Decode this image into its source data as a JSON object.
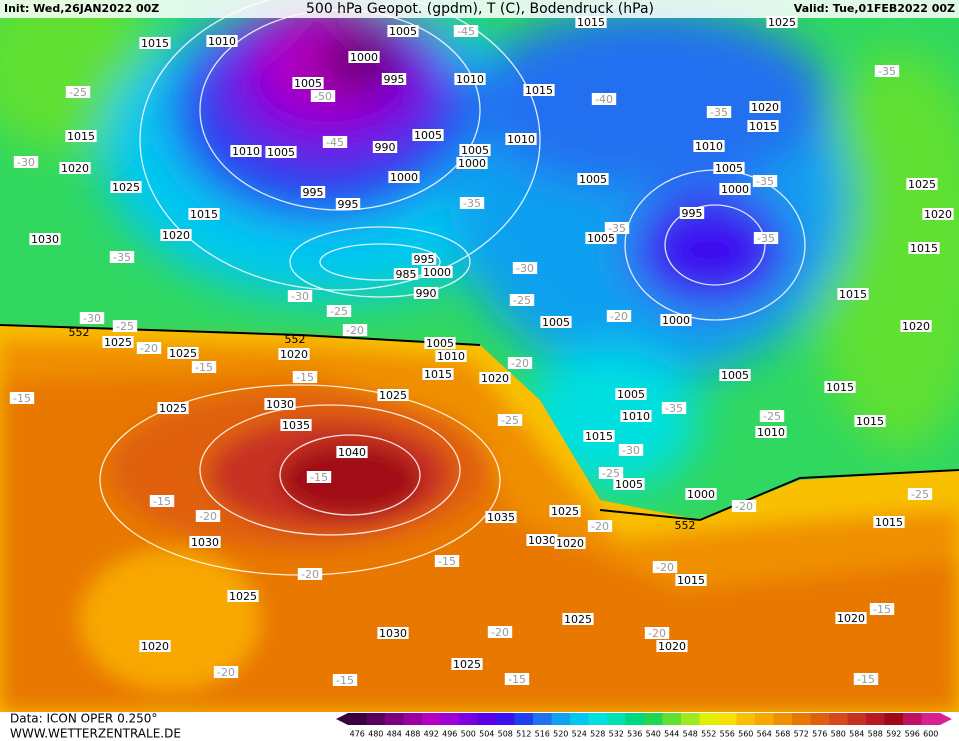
{
  "header": {
    "init": "Init: Wed,26JAN2022 00Z",
    "title": "500 hPa Geopot. (gpdm), T (C), Bodendruck (hPa)",
    "valid": "Valid: Tue,01FEB2022 00Z"
  },
  "footer": {
    "source": "Data: ICON OPER 0.250°",
    "site": "WWW.WETTERZENTRALE.DE"
  },
  "legend": {
    "values": [
      476,
      480,
      484,
      488,
      492,
      496,
      500,
      504,
      508,
      512,
      516,
      520,
      524,
      528,
      532,
      536,
      540,
      544,
      548,
      552,
      556,
      560,
      564,
      568,
      572,
      576,
      580,
      584,
      588,
      592,
      596,
      600
    ],
    "colors": [
      "#3a0040",
      "#5a0060",
      "#7a0080",
      "#9a00a0",
      "#b400c0",
      "#a000d8",
      "#7a00e0",
      "#5a00e8",
      "#3c10f0",
      "#2040f0",
      "#2070f0",
      "#10a0f0",
      "#00c8f0",
      "#00e0e0",
      "#00e0b0",
      "#00d880",
      "#20d850",
      "#60e030",
      "#a0e820",
      "#e0f000",
      "#f8e000",
      "#f8c000",
      "#f8a800",
      "#f09000",
      "#e87800",
      "#e06010",
      "#d84818",
      "#c83020",
      "#b81820",
      "#a00818",
      "#c01060",
      "#d82090"
    ]
  },
  "pressure_labels": [
    1015,
    1010,
    1005,
    1000,
    995,
    1005,
    1010,
    1015,
    1015,
    1025,
    1020,
    1015,
    1015,
    1020,
    1025,
    1010,
    1005,
    990,
    1005,
    1010,
    1005,
    1000,
    1000,
    995,
    995,
    1015,
    1020,
    1030,
    995,
    1000,
    985,
    990,
    1005,
    1010,
    1005,
    1000,
    995,
    1005,
    1025,
    1020,
    1015,
    1015,
    1005,
    1000,
    1020,
    1025,
    1025,
    1020,
    1005,
    1010,
    1015,
    1020,
    1025,
    1030,
    1025,
    1035,
    1040,
    1005,
    1005,
    1010,
    1015,
    1015,
    1015,
    1010,
    1005,
    1000,
    1035,
    1025,
    1030,
    1020,
    1015,
    1030,
    1015,
    1025,
    1025,
    1030,
    1020,
    1020,
    1020,
    1025
  ],
  "temperature_labels": [
    -45,
    -50,
    -45,
    -40,
    -35,
    -35,
    -25,
    -30,
    -35,
    -35,
    -35,
    -35,
    -35,
    -30,
    -25,
    -20,
    -25,
    -30,
    -20,
    -30,
    -25,
    -20,
    -15,
    -15,
    -15,
    -15,
    -15,
    -20,
    -20,
    -15,
    -20,
    -25,
    -30,
    -35,
    -25,
    -20,
    -25,
    -20,
    -15,
    -20,
    -20,
    -20,
    -15,
    -15,
    -15,
    -20,
    -25
  ],
  "contour_labels": [
    552,
    552,
    552
  ]
}
